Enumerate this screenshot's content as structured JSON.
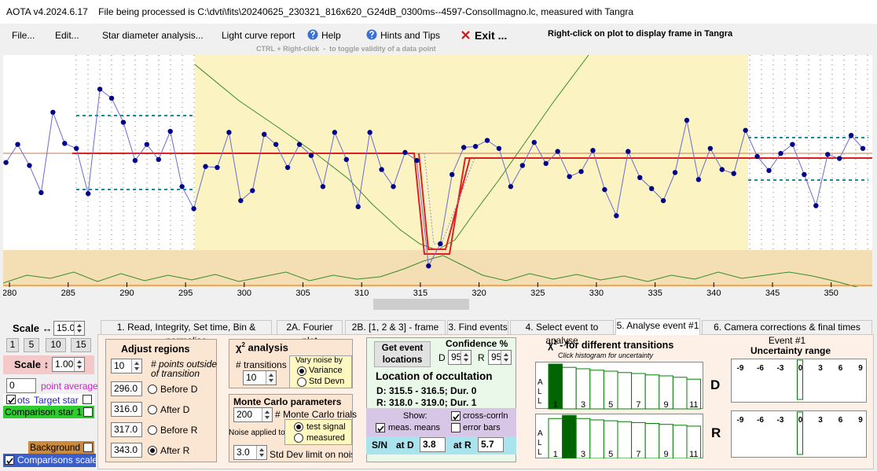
{
  "title_bar": "AOTA v4.2024.6.17    File being processed is C:\\dvti\\fits\\20240625_230321_816x620_G24dB_0300ms--4597-ConsolImagno.lc, measured with Tangra",
  "menu": {
    "items": [
      "File...",
      "Edit...",
      "Star diameter analysis...",
      "Light curve report",
      "Help",
      "Hints and Tips",
      "Exit ..."
    ],
    "right_click_note": "Right-click on plot to display frame in Tangra",
    "ctrl_note": "CTRL + Right-click  -  to toggle validity of a data point"
  },
  "plot": {
    "type": "line",
    "color": "#00008b",
    "xlim": [
      279.46,
      353.5
    ],
    "ylim": [
      -0.33,
      1.98
    ],
    "xticks": [
      280,
      285,
      290,
      295,
      300,
      305,
      310,
      315,
      320,
      325,
      330,
      335,
      340,
      345,
      350
    ],
    "x": [
      279.7,
      280.7,
      281.7,
      282.7,
      283.7,
      284.7,
      285.7,
      286.7,
      287.7,
      288.7,
      289.7,
      290.7,
      291.7,
      292.7,
      293.7,
      294.7,
      295.7,
      296.7,
      297.7,
      298.7,
      299.7,
      300.7,
      301.7,
      302.7,
      303.7,
      304.7,
      305.7,
      306.7,
      307.7,
      308.7,
      309.7,
      310.7,
      311.7,
      312.7,
      313.7,
      314.7,
      315.7,
      316.7,
      317.7,
      318.7,
      319.7,
      320.7,
      321.7,
      322.7,
      323.7,
      324.7,
      325.7,
      326.7,
      327.7,
      328.7,
      329.7,
      330.7,
      331.7,
      332.7,
      333.7,
      334.7,
      335.7,
      336.7,
      337.7,
      338.7,
      339.7,
      340.7,
      341.7,
      342.7,
      343.7,
      344.7,
      345.7,
      346.7,
      347.7,
      348.7,
      349.7,
      350.7,
      351.7,
      352.7
    ],
    "values": [
      0.91,
      1.09,
      0.88,
      0.61,
      1.41,
      1.1,
      1.05,
      0.6,
      1.64,
      1.55,
      1.31,
      0.93,
      1.09,
      0.94,
      1.22,
      0.67,
      0.45,
      0.87,
      0.86,
      1.21,
      0.53,
      0.63,
      1.19,
      1.09,
      0.86,
      1.09,
      0.98,
      0.67,
      1.21,
      0.94,
      0.47,
      1.21,
      0.84,
      0.67,
      1.01,
      0.93,
      -0.12,
      0.1,
      0.79,
      1.06,
      1.07,
      1.13,
      1.05,
      0.67,
      0.88,
      1.11,
      0.9,
      1.02,
      0.77,
      0.82,
      1.03,
      0.64,
      0.38,
      1.02,
      0.76,
      0.65,
      0.53,
      0.81,
      1.33,
      0.74,
      1.05,
      0.84,
      0.8,
      1.23,
      0.97,
      0.83,
      1.0,
      1.09,
      0.79,
      0.48,
      0.99,
      0.95,
      1.18,
      1.05
    ]
  },
  "left_panel": {
    "scale_h_label": "Scale ↔",
    "scale_h_value": "15.0",
    "scale_buttons": [
      "1",
      "5",
      "10",
      "15"
    ],
    "scale_v_label": "Scale ↕",
    "scale_v_value": "1.00",
    "avg_value": "0",
    "avg_label": "point average",
    "target_prefix": "ots",
    "target": "Target star",
    "comparison": "Comparison star 1",
    "background": "Background",
    "comparisons_scaled": "Comparisons scaled"
  },
  "tabs": {
    "items": [
      "1. Read, Integrity, Set time, Bin & normalise",
      "2A. Fourier plot",
      "2B. [1, 2 & 3] - frame test",
      "3. Find events",
      "4. Select event to analyse",
      "5. Analyse event #1",
      "6. Camera corrections & final times Event #1"
    ],
    "active": 5
  },
  "adjust": {
    "title": "Adjust regions",
    "points_value": "10",
    "points_label": [
      "# points outside",
      "of transition"
    ],
    "rows": [
      {
        "value": "296.0",
        "label": "Before D"
      },
      {
        "value": "316.0",
        "label": "After D"
      },
      {
        "value": "317.0",
        "label": "Before R"
      },
      {
        "value": "343.0",
        "label": "After R"
      }
    ]
  },
  "chi2": {
    "title": "χ",
    "title_sup": "2",
    "title_rest": " analysis",
    "transitions_label": "# transitions",
    "transitions_value": "10",
    "vary_noise": "Vary noise by",
    "options": [
      "Variance",
      "Std Devn"
    ]
  },
  "monte_carlo": {
    "title": "Monte Carlo parameters",
    "trials_value": "200",
    "trials_label": "# Monte Carlo trials",
    "noise_applied": "Noise applied to",
    "options": [
      "test signal",
      "measured"
    ],
    "sd_value": "3.0",
    "sd_label": "Std Dev limit on noise"
  },
  "event": {
    "button": "Get event locations",
    "confidence": "Confidence %",
    "d_label": "D",
    "d_value": "95",
    "r_label": "R",
    "r_value": "95",
    "location_title": "Location of occultation",
    "d_line": "D: 315.5 - 316.5; Dur. 0",
    "r_line": "R: 318.0 - 319.0; Dur. 1",
    "show": "Show:",
    "cross": "cross-corrln",
    "means": "meas. means",
    "error_bars": "error bars",
    "sn": "S/N",
    "at_d": "at D",
    "sn_d": "3.8",
    "at_r": "at R",
    "sn_r": "5.7"
  },
  "histogram": {
    "title": "χ",
    "title_sup": "2",
    "title_rest": " - for different transitions",
    "subtitle": "Click histogram for uncertainty",
    "all_label": "ALL",
    "ticks": [
      "1",
      "3",
      "5",
      "7",
      "9",
      "11"
    ],
    "d_label": "D",
    "r_label": "R",
    "d_bars": [
      0.95,
      0.88,
      0.85,
      0.82,
      0.8,
      0.77,
      0.75,
      0.72,
      0.7,
      0.67,
      0.63
    ],
    "r_bars": [
      0.89,
      0.96,
      0.89,
      0.86,
      0.84,
      0.82,
      0.8,
      0.78,
      0.76,
      0.74,
      0.72
    ]
  },
  "uncertainty": {
    "title": "Uncertainty range",
    "ticks": [
      "-9",
      "-6",
      "-3",
      "0",
      "3",
      "6",
      "9"
    ]
  }
}
